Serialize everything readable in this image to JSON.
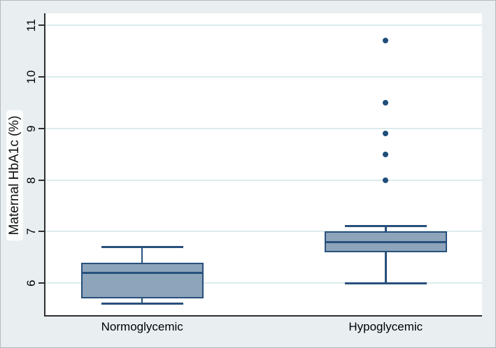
{
  "figure": {
    "background": "#e9eff1",
    "border_color": "#b3babd"
  },
  "chart_data": {
    "type": "box",
    "title": "",
    "xlabel": "",
    "ylabel": "Maternal HbA1c (%)",
    "categories": [
      "Normoglycemic",
      "Hypoglycemic"
    ],
    "yticks": [
      6,
      7,
      8,
      9,
      10,
      11
    ],
    "ylim": [
      5.38,
      11.23
    ],
    "grid": true,
    "legend": false,
    "series": [
      {
        "name": "Normoglycemic",
        "whisker_low": 5.6,
        "q1": 5.7,
        "median": 6.2,
        "q3": 6.4,
        "whisker_high": 6.7,
        "outliers": []
      },
      {
        "name": "Hypoglycemic",
        "whisker_low": 6.0,
        "q1": 6.6,
        "median": 6.8,
        "q3": 7.0,
        "whisker_high": 7.1,
        "outliers": [
          8.0,
          8.5,
          8.9,
          9.5,
          10.7
        ]
      }
    ],
    "colors": {
      "box_fill": "#8da4bb",
      "box_stroke": "#28507c",
      "outlier": "#1f4e79",
      "gridline": "#dcebeb",
      "axis": "#2f2f2f",
      "plot_background": "#ffffff",
      "figure_background": "#e9eff1",
      "text": "#000000"
    }
  }
}
